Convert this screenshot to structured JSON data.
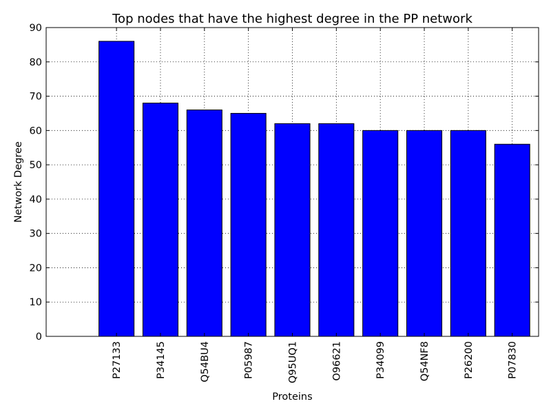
{
  "chart_data": {
    "type": "bar",
    "title": "Top nodes that have the highest degree in the PP network",
    "xlabel": "Proteins",
    "ylabel": "Network Degree",
    "categories": [
      "P27133",
      "P34145",
      "Q54BU4",
      "P05987",
      "Q95UQ1",
      "O96621",
      "P34099",
      "Q54NF8",
      "P26200",
      "P07830"
    ],
    "values": [
      86,
      68,
      66,
      65,
      62,
      62,
      60,
      60,
      60,
      56
    ],
    "ylim": [
      0,
      90
    ],
    "yticks": [
      "0",
      "10",
      "20",
      "30",
      "40",
      "50",
      "60",
      "70",
      "80",
      "90"
    ],
    "grid": true,
    "bar_color": "#0000ff",
    "edge_color": "#000000",
    "tick_label_rotation": "vertical"
  }
}
